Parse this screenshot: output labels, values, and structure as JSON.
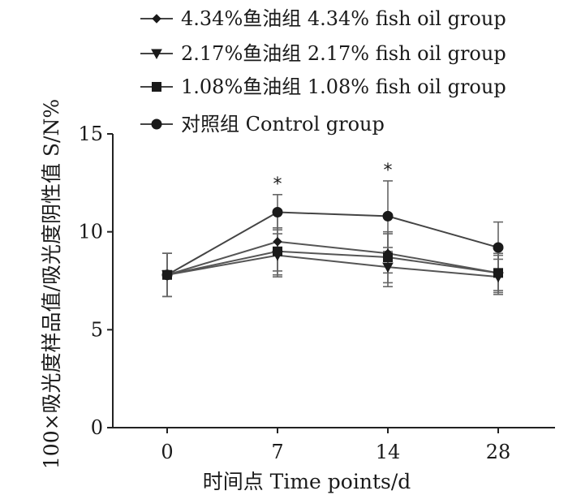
{
  "chart_data": {
    "type": "line",
    "xlabel": "时间点 Time points/d",
    "ylabel": "100×吸光度样品值/吸光度阴性值 S/N%",
    "x": [
      "0",
      "7",
      "14",
      "28"
    ],
    "yticks": [
      "0",
      "5",
      "10",
      "15"
    ],
    "ylim": [
      0,
      15
    ],
    "legend_position": "top",
    "series": [
      {
        "name": "4.34%鱼油组 4.34% fish oil group",
        "marker": "diamond",
        "values": [
          7.8,
          9.5,
          8.9,
          7.9
        ],
        "errors": [
          1.1,
          1.5,
          1.0,
          0.9
        ]
      },
      {
        "name": "2.17%鱼油组 2.17% fish oil group",
        "marker": "triangle-down",
        "values": [
          7.8,
          8.8,
          8.2,
          7.7
        ],
        "errors": [
          1.1,
          1.1,
          1.0,
          0.9
        ]
      },
      {
        "name": "1.08%鱼油组 1.08% fish oil group",
        "marker": "square",
        "values": [
          7.8,
          9.0,
          8.7,
          7.9
        ],
        "errors": [
          1.1,
          1.2,
          1.3,
          1.0
        ]
      },
      {
        "name": "对照组  Control group",
        "marker": "circle",
        "values": [
          7.8,
          11.0,
          10.8,
          9.2
        ],
        "errors": [
          1.1,
          0.9,
          1.8,
          1.3
        ]
      }
    ],
    "annotations": [
      {
        "x": "7",
        "text": "*"
      },
      {
        "x": "14",
        "text": "*"
      }
    ]
  }
}
